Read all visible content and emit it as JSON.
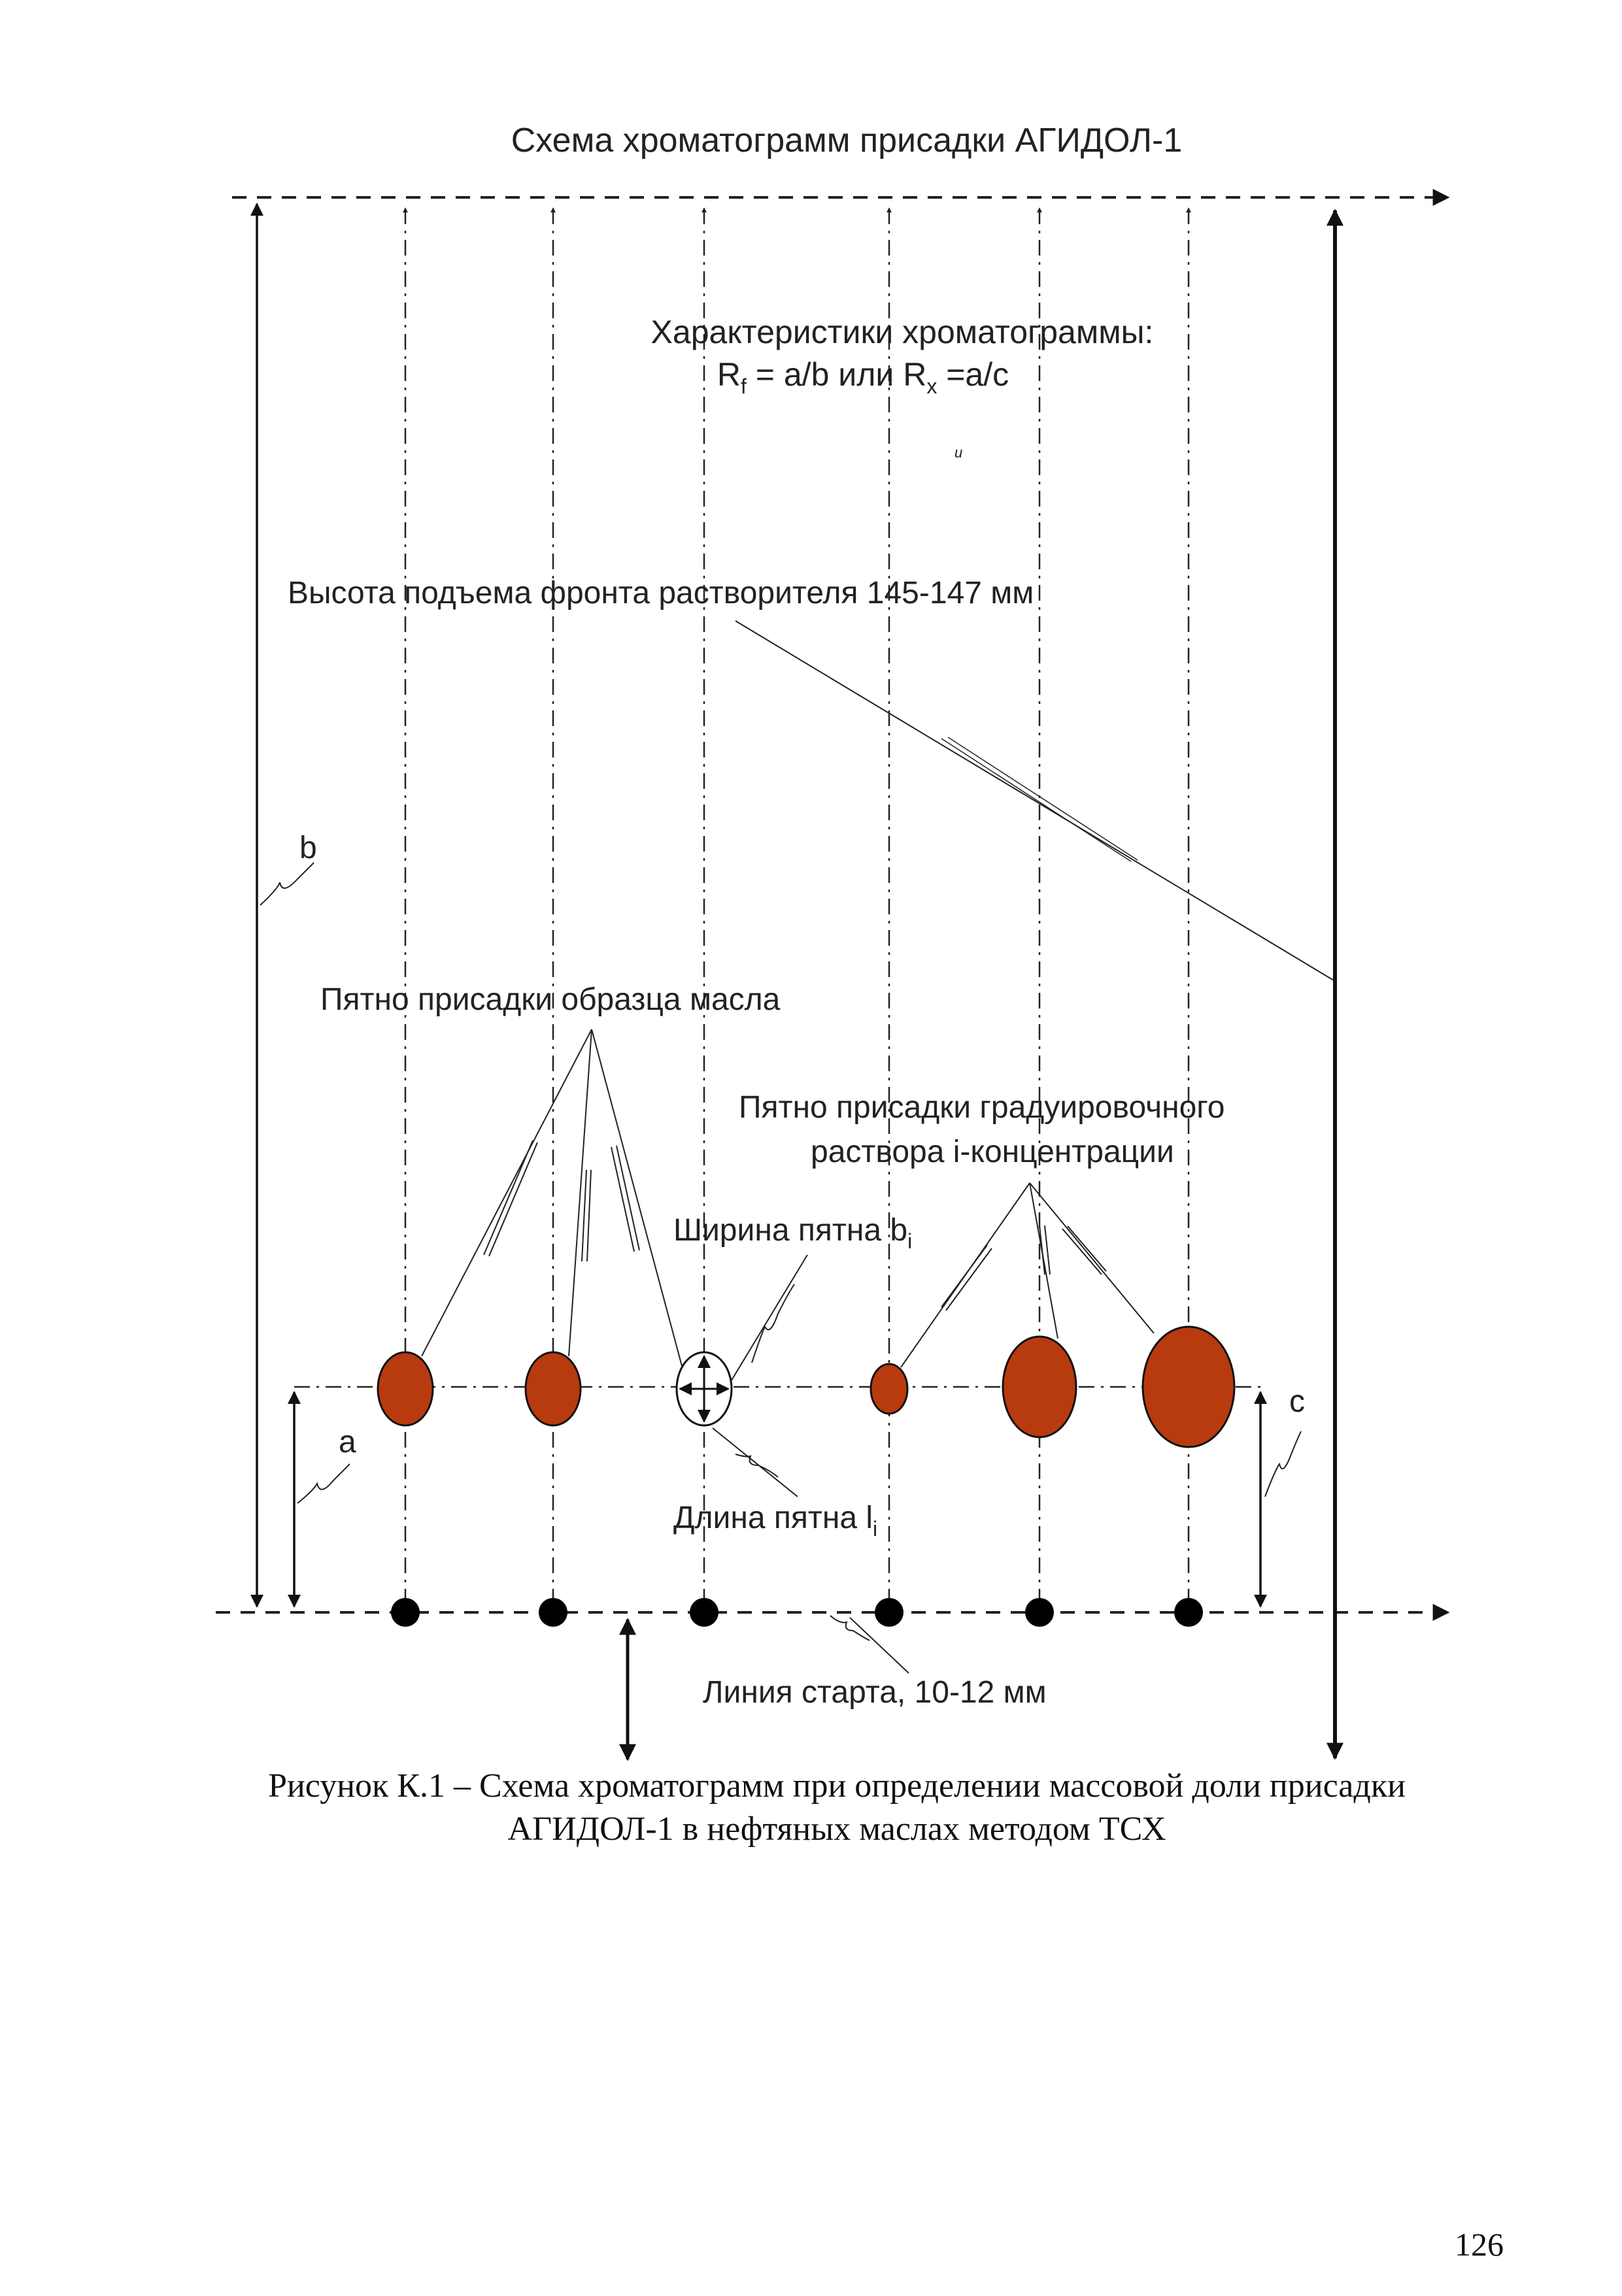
{
  "diagram": {
    "title": "Схема хроматограмм присадки АГИДОЛ-1",
    "characteristics_heading": "Характеристики хроматограммы:",
    "formula": {
      "rf_base": "R",
      "rf_sub": "f",
      "mid": " = a/b или R",
      "rx_sub": "x",
      "rx_tail": " =a/c"
    },
    "stray_mark": "и",
    "solvent_front_label": "Высота подъема фронта растворителя 145-147 мм",
    "label_b": "b",
    "label_a": "a",
    "label_c": "c",
    "oil_sample_spot_label": "Пятно присадки образца масла",
    "calibration_spot_label_line1": "Пятно присадки градуировочного",
    "calibration_spot_label_line2": "раствора i-концентрации",
    "spot_width_base": "Ширина пятна b",
    "spot_width_sub": "i",
    "spot_length_base": "Длина пятна l",
    "spot_length_sub": "i",
    "start_line_label": "Линия старта, 10-12 мм",
    "spot_color": "#b83a0f",
    "line_color": "#222222"
  },
  "caption": {
    "line1": "Рисунок К.1 – Схема хроматограмм при определении массовой доли присадки",
    "line2": "АГИДОЛ-1 в нефтяных маслах методом ТСХ"
  },
  "page_number": "126"
}
